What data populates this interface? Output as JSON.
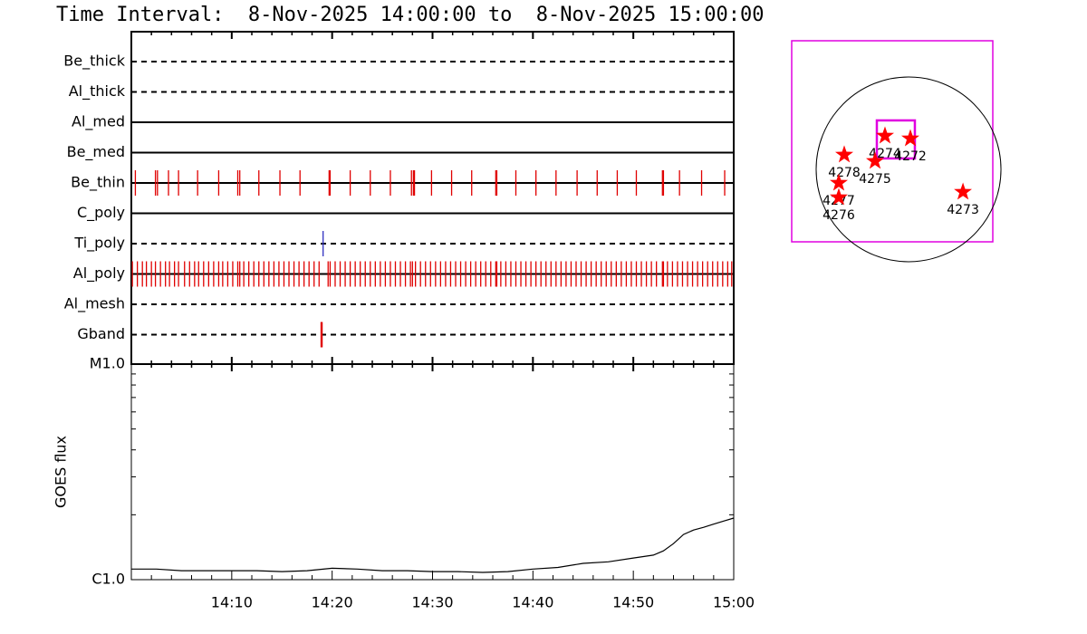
{
  "title": "Time Interval:  8-Nov-2025 14:00:00 to  8-Nov-2025 15:00:00",
  "chart_data": [
    {
      "type": "timeline",
      "xlim": [
        0,
        60
      ],
      "xticks": [
        10,
        20,
        30,
        40,
        50
      ],
      "xminorticks": [
        2,
        4,
        6,
        8,
        12,
        14,
        16,
        18,
        22,
        24,
        26,
        28,
        32,
        34,
        36,
        38,
        42,
        44,
        46,
        48,
        52,
        54,
        56,
        58
      ],
      "rows": [
        {
          "name": "Be_thick",
          "style": "dashed",
          "color": "#e00000",
          "events": []
        },
        {
          "name": "Al_thick",
          "style": "dashed",
          "color": "#e00000",
          "events": []
        },
        {
          "name": "Al_med",
          "style": "solid",
          "color": "#e00000",
          "events": []
        },
        {
          "name": "Be_med",
          "style": "solid",
          "color": "#e00000",
          "events": []
        },
        {
          "name": "Be_thin",
          "style": "solid",
          "color": "#e00000",
          "events": [
            0.4,
            2.4,
            2.6,
            3.7,
            4.7,
            6.6,
            8.7,
            10.6,
            10.8,
            12.7,
            14.8,
            16.8,
            19.7,
            19.8,
            21.8,
            23.8,
            25.8,
            27.9,
            28.1,
            28.2,
            29.9,
            31.9,
            33.9,
            36.3,
            36.4,
            38.3,
            40.3,
            42.3,
            44.4,
            46.4,
            48.4,
            50.3,
            52.9,
            53.0,
            54.6,
            56.8,
            59.1
          ]
        },
        {
          "name": "C_poly",
          "style": "solid",
          "color": "#e00000",
          "events": []
        },
        {
          "name": "Ti_poly",
          "style": "dashed",
          "color": "#3030c0",
          "events": [
            19.1
          ]
        },
        {
          "name": "Al_poly",
          "style": "solid",
          "color": "#e00000",
          "events": [
            0.1,
            0.6,
            1.1,
            1.5,
            2.0,
            2.4,
            2.9,
            3.4,
            3.8,
            4.3,
            4.7,
            5.3,
            5.8,
            6.3,
            6.7,
            7.2,
            7.7,
            8.2,
            8.7,
            9.1,
            9.6,
            10.1,
            10.6,
            10.8,
            11.2,
            11.7,
            12.2,
            12.7,
            13.2,
            13.7,
            14.2,
            14.7,
            15.2,
            15.7,
            16.2,
            16.7,
            17.2,
            17.7,
            18.2,
            18.7,
            19.6,
            19.8,
            20.3,
            20.8,
            21.3,
            21.8,
            22.3,
            22.8,
            23.3,
            23.8,
            24.3,
            24.8,
            25.3,
            25.8,
            26.3,
            26.8,
            27.3,
            27.8,
            28.0,
            28.3,
            28.8,
            29.3,
            29.8,
            30.3,
            30.8,
            31.3,
            31.8,
            32.3,
            32.8,
            33.3,
            33.8,
            34.3,
            34.8,
            35.3,
            35.8,
            36.3,
            36.4,
            36.8,
            37.3,
            37.8,
            38.3,
            38.8,
            39.3,
            39.8,
            40.3,
            40.8,
            41.3,
            41.8,
            42.3,
            42.8,
            43.3,
            43.8,
            44.3,
            44.8,
            45.3,
            45.8,
            46.3,
            46.8,
            47.3,
            47.8,
            48.3,
            48.8,
            49.3,
            49.8,
            50.3,
            50.8,
            51.3,
            51.8,
            52.3,
            52.9,
            53.0,
            53.4,
            53.9,
            54.4,
            54.9,
            55.4,
            55.9,
            56.4,
            56.9,
            57.4,
            57.9,
            58.4,
            58.9,
            59.4,
            59.8
          ]
        },
        {
          "name": "Al_mesh",
          "style": "dashed",
          "color": "#e00000",
          "events": []
        },
        {
          "name": "Gband",
          "style": "dashed",
          "color": "#e00000",
          "events": [
            18.9,
            19.0
          ]
        }
      ]
    },
    {
      "type": "line",
      "ylabel": "GOES flux",
      "log": true,
      "color": "#000000",
      "xlim": [
        0,
        60
      ],
      "xticks": [
        {
          "value": 10,
          "label": "14:10"
        },
        {
          "value": 20,
          "label": "14:20"
        },
        {
          "value": 30,
          "label": "14:30"
        },
        {
          "value": 40,
          "label": "14:40"
        },
        {
          "value": 50,
          "label": "14:50"
        },
        {
          "value": 60,
          "label": "15:00"
        }
      ],
      "xminorticks": [
        2,
        4,
        6,
        8,
        12,
        14,
        16,
        18,
        22,
        24,
        26,
        28,
        32,
        34,
        36,
        38,
        42,
        44,
        46,
        48,
        52,
        54,
        56,
        58
      ],
      "ylim": [
        1e-06,
        1e-05
      ],
      "yticks": [
        {
          "value": 1e-06,
          "label": "C1.0"
        },
        {
          "value": 1e-05,
          "label": "M1.0"
        }
      ],
      "yminorticks": [
        2e-06,
        3e-06,
        4e-06,
        5e-06,
        6e-06,
        7e-06,
        8e-06,
        9e-06
      ],
      "x": [
        0,
        2.5,
        5,
        7.5,
        10,
        12.5,
        15,
        17.5,
        20,
        22.5,
        25,
        27.5,
        30,
        32.5,
        35,
        37.5,
        40,
        42.5,
        45,
        47.5,
        50,
        52,
        53,
        54,
        55,
        56,
        57,
        58,
        59,
        60
      ],
      "values": [
        1.12e-06,
        1.12e-06,
        1.1e-06,
        1.1e-06,
        1.1e-06,
        1.1e-06,
        1.09e-06,
        1.1e-06,
        1.13e-06,
        1.12e-06,
        1.1e-06,
        1.1e-06,
        1.09e-06,
        1.09e-06,
        1.08e-06,
        1.09e-06,
        1.12e-06,
        1.14e-06,
        1.19e-06,
        1.21e-06,
        1.26e-06,
        1.3e-06,
        1.36e-06,
        1.47e-06,
        1.62e-06,
        1.7e-06,
        1.75e-06,
        1.81e-06,
        1.87e-06,
        1.93e-06
      ]
    },
    {
      "type": "map",
      "xlim": [
        -1214,
        875
      ],
      "ylim": [
        -753,
        1336
      ],
      "solar_radius": 960,
      "frame_color": "#e000e0",
      "star_color": "#ff0000",
      "fov": {
        "x": -132,
        "y": 311,
        "size": 395
      },
      "regions": [
        {
          "label": "4274",
          "x": -245,
          "y": 348
        },
        {
          "label": "4272",
          "x": 19,
          "y": 320
        },
        {
          "label": "4278",
          "x": -668,
          "y": 151
        },
        {
          "label": "4275",
          "x": -348,
          "y": 85
        },
        {
          "label": "4277",
          "x": -725,
          "y": -141
        },
        {
          "label": "4276",
          "x": -725,
          "y": -292
        },
        {
          "label": "4273",
          "x": 565,
          "y": -235
        }
      ]
    }
  ]
}
